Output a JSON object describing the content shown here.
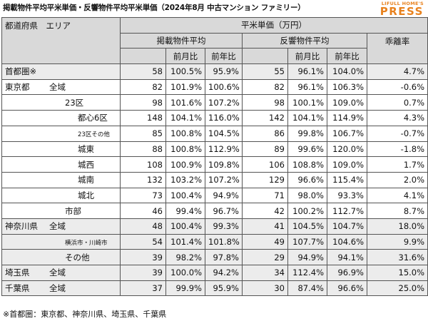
{
  "title": "掲載物件平均平米単価・反響物件平均平米単価（2024年8月 中古マンション ファミリー）",
  "logo": {
    "sub": "LIFULL HOME'S",
    "main": "PRESS"
  },
  "header": {
    "area_label": "都道府県　エリア",
    "group_label": "平米単価（万円）",
    "listed_label": "掲載物件平均",
    "response_label": "反響物件平均",
    "divergence_label": "乖離率",
    "mom_label": "前月比",
    "yoy_label": "前年比"
  },
  "rows": [
    {
      "pref": "首都圏※",
      "area": "",
      "indent": 0,
      "l_val": "58",
      "l_mom": "100.5%",
      "l_yoy": "95.9%",
      "r_val": "55",
      "r_mom": "96.1%",
      "r_yoy": "104.0%",
      "div": "4.7%"
    },
    {
      "pref": "東京都",
      "area": "全域",
      "indent": 1,
      "l_val": "82",
      "l_mom": "101.9%",
      "l_yoy": "100.6%",
      "r_val": "82",
      "r_mom": "96.1%",
      "r_yoy": "106.3%",
      "div": "-0.6%"
    },
    {
      "pref": "",
      "area": "23区",
      "indent": 2,
      "l_val": "98",
      "l_mom": "101.6%",
      "l_yoy": "107.2%",
      "r_val": "98",
      "r_mom": "100.1%",
      "r_yoy": "109.0%",
      "div": "0.7%"
    },
    {
      "pref": "",
      "area": "都心6区",
      "indent": 3,
      "l_val": "148",
      "l_mom": "104.1%",
      "l_yoy": "116.0%",
      "r_val": "142",
      "r_mom": "104.1%",
      "r_yoy": "114.9%",
      "div": "4.3%"
    },
    {
      "pref": "",
      "area": "23区その他",
      "indent": 3,
      "small": true,
      "l_val": "85",
      "l_mom": "100.8%",
      "l_yoy": "104.5%",
      "r_val": "86",
      "r_mom": "99.8%",
      "r_yoy": "106.7%",
      "div": "-0.7%"
    },
    {
      "pref": "",
      "area": "城東",
      "indent": 3,
      "l_val": "88",
      "l_mom": "100.8%",
      "l_yoy": "112.9%",
      "r_val": "89",
      "r_mom": "99.6%",
      "r_yoy": "120.0%",
      "div": "-1.8%"
    },
    {
      "pref": "",
      "area": "城西",
      "indent": 3,
      "l_val": "108",
      "l_mom": "100.9%",
      "l_yoy": "109.8%",
      "r_val": "106",
      "r_mom": "108.8%",
      "r_yoy": "109.0%",
      "div": "1.7%"
    },
    {
      "pref": "",
      "area": "城南",
      "indent": 3,
      "l_val": "132",
      "l_mom": "103.2%",
      "l_yoy": "107.2%",
      "r_val": "129",
      "r_mom": "96.6%",
      "r_yoy": "115.4%",
      "div": "2.0%"
    },
    {
      "pref": "",
      "area": "城北",
      "indent": 3,
      "l_val": "73",
      "l_mom": "100.4%",
      "l_yoy": "94.9%",
      "r_val": "71",
      "r_mom": "98.0%",
      "r_yoy": "93.3%",
      "div": "4.1%"
    },
    {
      "pref": "",
      "area": "市部",
      "indent": 2,
      "l_val": "46",
      "l_mom": "99.4%",
      "l_yoy": "96.7%",
      "r_val": "42",
      "r_mom": "100.2%",
      "r_yoy": "112.7%",
      "div": "8.7%"
    },
    {
      "pref": "神奈川県",
      "area": "全域",
      "indent": 1,
      "l_val": "48",
      "l_mom": "100.4%",
      "l_yoy": "99.3%",
      "r_val": "41",
      "r_mom": "104.5%",
      "r_yoy": "104.7%",
      "div": "18.0%"
    },
    {
      "pref": "",
      "area": "横浜市・川崎市",
      "indent": 2,
      "small": true,
      "l_val": "54",
      "l_mom": "101.4%",
      "l_yoy": "101.8%",
      "r_val": "49",
      "r_mom": "107.7%",
      "r_yoy": "104.6%",
      "div": "9.9%"
    },
    {
      "pref": "",
      "area": "その他",
      "indent": 2,
      "l_val": "39",
      "l_mom": "98.2%",
      "l_yoy": "97.8%",
      "r_val": "29",
      "r_mom": "94.9%",
      "r_yoy": "94.1%",
      "div": "31.6%"
    },
    {
      "pref": "埼玉県",
      "area": "全域",
      "indent": 1,
      "l_val": "39",
      "l_mom": "100.0%",
      "l_yoy": "94.2%",
      "r_val": "34",
      "r_mom": "112.4%",
      "r_yoy": "96.9%",
      "div": "15.0%"
    },
    {
      "pref": "千葉県",
      "area": "全域",
      "indent": 1,
      "l_val": "37",
      "l_mom": "99.9%",
      "l_yoy": "95.9%",
      "r_val": "30",
      "r_mom": "87.4%",
      "r_yoy": "96.6%",
      "div": "25.0%"
    }
  ],
  "footnote": "※首都圏：東京都、神奈川県、埼玉県、千葉県"
}
